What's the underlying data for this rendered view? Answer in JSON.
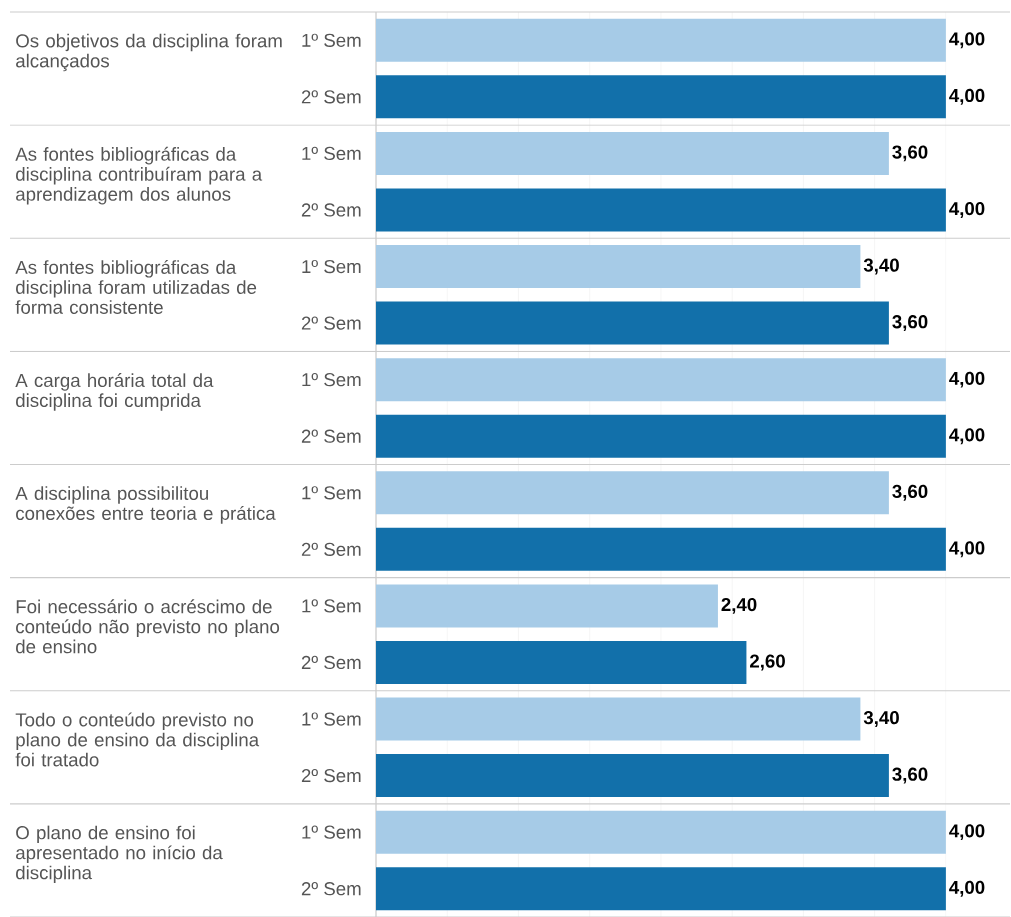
{
  "chart_data": {
    "type": "bar",
    "orientation": "horizontal",
    "categories": [
      "Os objetivos da disciplina foram alcançados",
      "As fontes bibliográficas da disciplina contribuíram para a aprendizagem dos alunos",
      "As fontes bibliográficas da disciplina foram utilizadas de forma consistente",
      "A carga horária total da disciplina foi cumprida",
      "A disciplina possibilitou conexões entre teoria e prática",
      "Foi necessário o acréscimo de conteúdo não previsto no plano de ensino",
      "Todo o conteúdo previsto no plano de ensino da disciplina foi tratado",
      "O plano de ensino foi apresentado no início da disciplina"
    ],
    "series": [
      {
        "name": "1º Sem",
        "color": "#a6cbe7",
        "values": [
          4.0,
          3.6,
          3.4,
          4.0,
          3.6,
          2.4,
          3.4,
          4.0
        ],
        "value_labels": [
          "4,00",
          "3,60",
          "3,40",
          "4,00",
          "3,60",
          "2,40",
          "3,40",
          "4,00"
        ]
      },
      {
        "name": "2º Sem",
        "color": "#1270aa",
        "values": [
          4.0,
          4.0,
          3.6,
          4.0,
          4.0,
          2.6,
          3.6,
          4.0
        ],
        "value_labels": [
          "4,00",
          "4,00",
          "3,60",
          "4,00",
          "4,00",
          "2,60",
          "3,60",
          "4,00"
        ]
      }
    ],
    "xlim": [
      0,
      4.45
    ],
    "xticks": [
      {
        "value": 0,
        "label": null
      },
      {
        "value": 0.5,
        "label": null
      },
      {
        "value": 1,
        "label": null
      },
      {
        "value": 1.5,
        "label": null
      },
      {
        "value": 2,
        "label": null
      },
      {
        "value": 2.5,
        "label": null
      },
      {
        "value": 3,
        "label": null
      },
      {
        "value": 3.5,
        "label": null
      },
      {
        "value": 4,
        "label": null
      }
    ],
    "grid": "x",
    "tick_labels": "y"
  }
}
